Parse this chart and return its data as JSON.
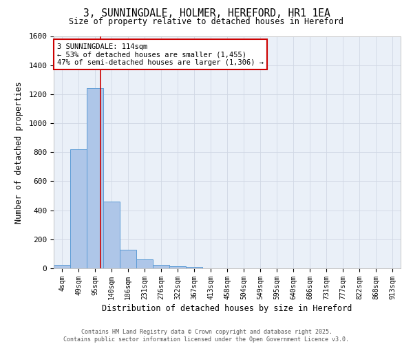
{
  "title": "3, SUNNINGDALE, HOLMER, HEREFORD, HR1 1EA",
  "subtitle": "Size of property relative to detached houses in Hereford",
  "xlabel": "Distribution of detached houses by size in Hereford",
  "ylabel": "Number of detached properties",
  "bar_labels": [
    "4sqm",
    "49sqm",
    "95sqm",
    "140sqm",
    "186sqm",
    "231sqm",
    "276sqm",
    "322sqm",
    "367sqm",
    "413sqm",
    "458sqm",
    "504sqm",
    "549sqm",
    "595sqm",
    "640sqm",
    "686sqm",
    "731sqm",
    "777sqm",
    "822sqm",
    "868sqm",
    "913sqm"
  ],
  "bar_values": [
    25,
    820,
    1240,
    460,
    130,
    60,
    25,
    15,
    10,
    0,
    0,
    0,
    0,
    0,
    0,
    0,
    0,
    0,
    0,
    0,
    0
  ],
  "bar_color": "#aec6e8",
  "bar_edge_color": "#5b9bd5",
  "grid_color": "#d0d8e4",
  "bg_color": "#eaf0f8",
  "vline_x": 2.35,
  "vline_color": "#cc0000",
  "annotation_text": "3 SUNNINGDALE: 114sqm\n← 53% of detached houses are smaller (1,455)\n47% of semi-detached houses are larger (1,306) →",
  "annotation_box_color": "#ffffff",
  "annotation_box_edge": "#cc0000",
  "ylim": [
    0,
    1600
  ],
  "yticks": [
    0,
    200,
    400,
    600,
    800,
    1000,
    1200,
    1400,
    1600
  ],
  "footer": "Contains HM Land Registry data © Crown copyright and database right 2025.\nContains public sector information licensed under the Open Government Licence v3.0.",
  "figsize": [
    6.0,
    5.0
  ],
  "dpi": 100
}
